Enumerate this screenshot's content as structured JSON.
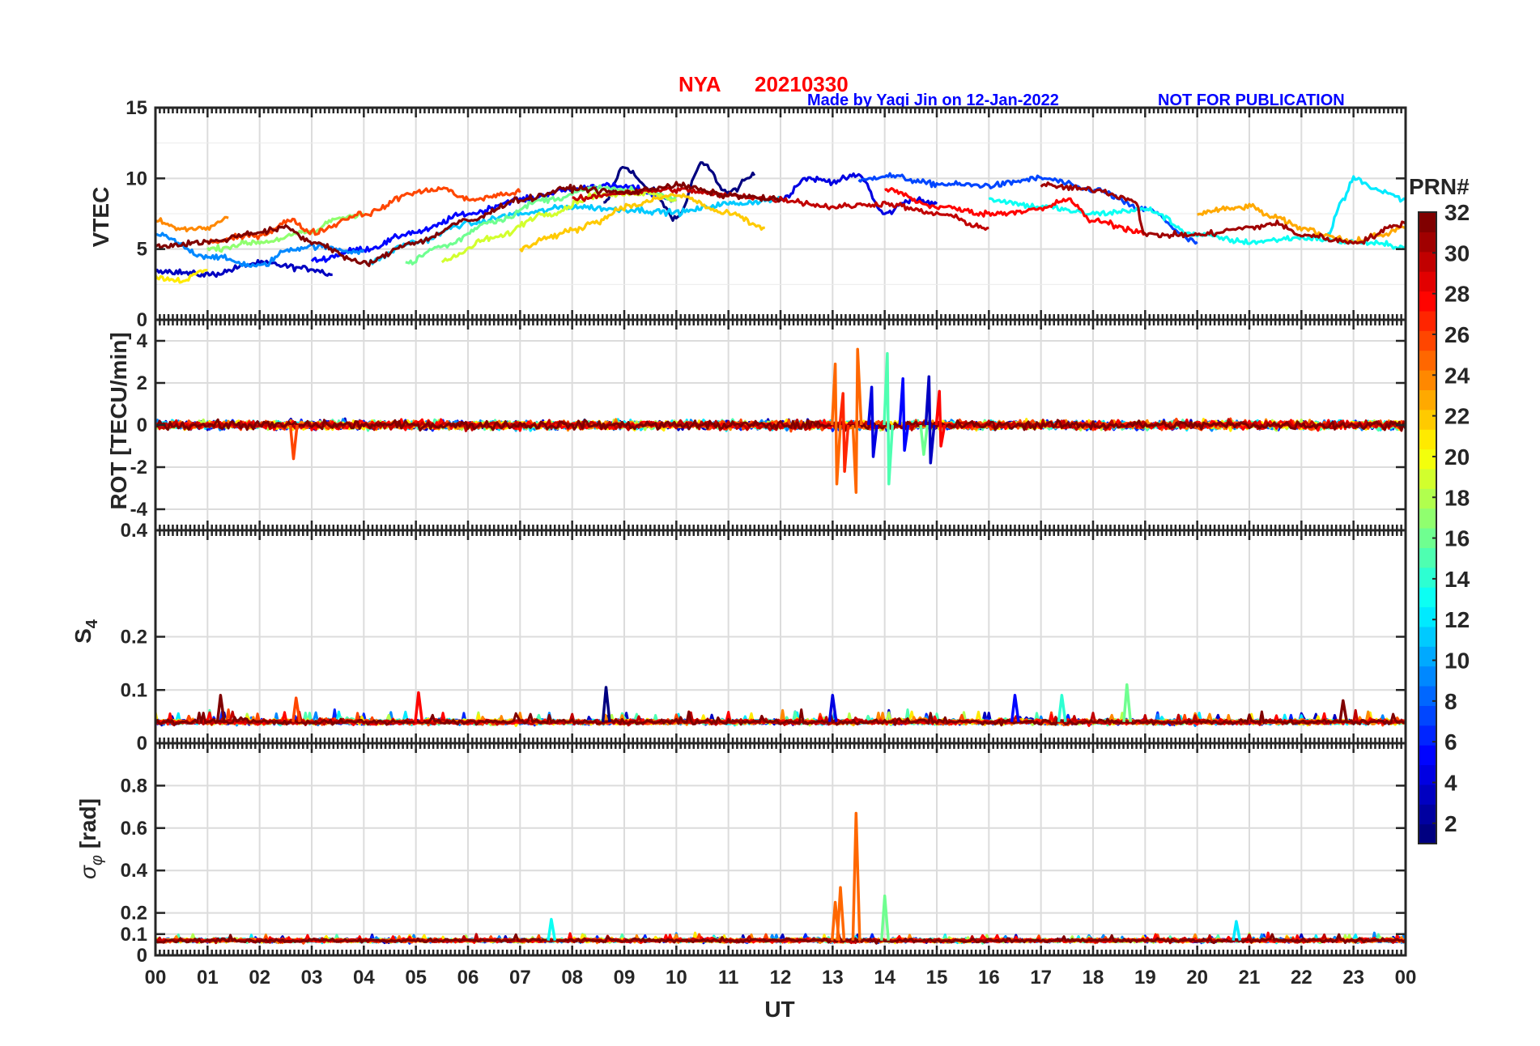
{
  "chart_data": {
    "type": "line",
    "title": {
      "station": "NYA",
      "date": "20210330"
    },
    "credit": "Made by Yaqi Jin on 12-Jan-2022",
    "notice": "NOT FOR PUBLICATION",
    "xlabel": "UT",
    "x_ticks": [
      "00",
      "01",
      "02",
      "03",
      "04",
      "05",
      "06",
      "07",
      "08",
      "09",
      "10",
      "11",
      "12",
      "13",
      "14",
      "15",
      "16",
      "17",
      "18",
      "19",
      "20",
      "21",
      "22",
      "23",
      "00"
    ],
    "xlim": [
      0,
      24
    ],
    "colorbar": {
      "title": "PRN#",
      "range": [
        1,
        32
      ],
      "ticks": [
        "2",
        "4",
        "6",
        "8",
        "10",
        "12",
        "14",
        "16",
        "18",
        "20",
        "22",
        "24",
        "26",
        "28",
        "30",
        "32"
      ],
      "colormap": "jet"
    },
    "panels": [
      {
        "id": "vtec",
        "ylabel": "VTEC",
        "ylim": [
          0,
          15
        ],
        "yticks": [
          0,
          5,
          10,
          15
        ],
        "ytick_labels": [
          "0",
          "5",
          "10",
          "15"
        ],
        "series": [
          {
            "prn": 1,
            "hours": [
              8.6,
              9.0,
              9.5,
              10.0,
              10.5,
              11.0,
              11.5
            ],
            "values": [
              8.2,
              10.8,
              9.2,
              7.2,
              11.0,
              9.0,
              10.2
            ]
          },
          {
            "prn": 3,
            "hours": [
              0.0,
              1.0,
              2.0,
              3.0,
              3.4
            ],
            "values": [
              3.5,
              3.2,
              4.0,
              3.6,
              3.2
            ]
          },
          {
            "prn": 4,
            "hours": [
              12.0,
              12.5,
              13.0,
              13.5,
              14.0,
              14.5,
              15.0
            ],
            "values": [
              8.5,
              10.0,
              9.8,
              10.2,
              7.5,
              8.5,
              8.2
            ]
          },
          {
            "prn": 5,
            "hours": [
              3.0,
              4.0,
              5.0,
              6.0,
              7.0,
              8.0,
              8.5,
              9.0,
              10.0
            ],
            "values": [
              4.2,
              5.0,
              6.2,
              7.5,
              8.5,
              9.2,
              9.5,
              9.4,
              8.5
            ]
          },
          {
            "prn": 7,
            "hours": [
              13.5,
              14.0,
              15.0,
              16.0,
              17.0,
              18.0,
              19.0,
              20.0
            ],
            "values": [
              9.8,
              10.2,
              9.6,
              9.5,
              10.0,
              9.2,
              7.8,
              5.5
            ]
          },
          {
            "prn": 9,
            "hours": [
              0.0,
              1.0,
              2.0,
              2.6,
              3.0,
              4.0
            ],
            "values": [
              6.0,
              4.5,
              3.8,
              5.0,
              5.2,
              4.8
            ]
          },
          {
            "prn": 11,
            "hours": [
              4.0,
              5.0,
              6.0,
              7.0,
              8.0,
              9.0,
              10.0,
              11.0,
              12.0
            ],
            "values": [
              4.0,
              5.5,
              6.8,
              7.5,
              8.0,
              7.8,
              7.6,
              8.2,
              8.5
            ]
          },
          {
            "prn": 12,
            "hours": [
              22.5,
              22.8,
              23.0,
              23.5,
              24.0
            ],
            "values": [
              6.0,
              8.5,
              10.0,
              9.2,
              8.5
            ]
          },
          {
            "prn": 13,
            "hours": [
              16.0,
              17.0,
              18.0,
              19.0,
              20.0,
              21.0,
              22.0,
              23.0,
              24.0
            ],
            "values": [
              8.5,
              8.0,
              7.5,
              7.8,
              6.0,
              5.5,
              5.8,
              5.5,
              5.2
            ]
          },
          {
            "prn": 16,
            "hours": [
              4.8,
              5.5,
              6.5,
              7.5,
              8.5,
              9.5,
              10.0
            ],
            "values": [
              4.0,
              5.2,
              7.0,
              8.5,
              9.3,
              9.0,
              8.6
            ]
          },
          {
            "prn": 17,
            "hours": [
              1.0,
              2.0,
              3.0,
              3.5,
              4.0
            ],
            "values": [
              5.0,
              5.5,
              6.2,
              7.2,
              7.5
            ]
          },
          {
            "prn": 19,
            "hours": [
              5.5,
              6.5,
              7.5,
              8.5,
              9.5,
              10.0
            ],
            "values": [
              4.2,
              5.8,
              7.5,
              8.8,
              9.0,
              8.5
            ]
          },
          {
            "prn": 21,
            "hours": [
              0.0,
              0.5,
              1.0
            ],
            "values": [
              3.0,
              2.8,
              3.5
            ]
          },
          {
            "prn": 22,
            "hours": [
              7.0,
              7.5,
              8.0,
              8.5,
              9.0,
              10.0,
              11.0,
              11.7
            ],
            "values": [
              5.0,
              5.8,
              6.3,
              7.0,
              8.0,
              8.8,
              7.5,
              6.5
            ]
          },
          {
            "prn": 23,
            "hours": [
              20.0,
              20.5,
              21.0,
              21.5,
              22.0,
              22.5,
              23.0,
              23.5,
              24.0
            ],
            "values": [
              7.5,
              7.8,
              8.0,
              7.2,
              6.5,
              6.0,
              5.5,
              6.0,
              6.5
            ]
          },
          {
            "prn": 24,
            "hours": [
              0.0,
              0.5,
              1.0,
              1.4
            ],
            "values": [
              7.0,
              6.4,
              6.5,
              7.2
            ]
          },
          {
            "prn": 26,
            "hours": [
              1.0,
              2.0,
              2.6,
              3.0,
              4.0,
              5.0,
              5.5,
              6.0,
              7.0
            ],
            "values": [
              5.5,
              6.0,
              7.0,
              6.2,
              7.5,
              9.0,
              9.3,
              8.5,
              9.0
            ]
          },
          {
            "prn": 28,
            "hours": [
              14.0,
              15.0,
              16.0,
              17.0,
              17.5,
              18.0,
              19.0
            ],
            "values": [
              9.2,
              8.0,
              7.5,
              7.8,
              8.5,
              7.0,
              6.2
            ]
          },
          {
            "prn": 30,
            "hours": [
              8.0,
              9.0,
              10.0,
              11.0,
              12.0,
              13.0,
              14.0,
              15.0,
              16.0
            ],
            "values": [
              8.5,
              9.0,
              9.2,
              8.8,
              8.5,
              8.0,
              8.2,
              7.5,
              6.5
            ]
          },
          {
            "prn": 31,
            "hours": [
              17.0,
              18.0,
              18.8,
              19.0,
              20.0,
              21.0,
              21.5,
              22.0,
              23.0,
              24.0
            ],
            "values": [
              9.5,
              9.2,
              8.5,
              6.0,
              6.0,
              6.5,
              6.8,
              6.0,
              5.5,
              6.8
            ]
          },
          {
            "prn": 32,
            "hours": [
              0.0,
              1.0,
              2.0,
              2.5,
              3.0,
              4.0,
              5.0,
              6.0,
              7.0,
              8.0,
              9.0,
              10.0,
              11.0,
              12.0
            ],
            "values": [
              5.2,
              5.5,
              6.2,
              6.5,
              5.5,
              4.0,
              5.5,
              7.0,
              8.5,
              9.3,
              9.0,
              9.5,
              8.8,
              8.5
            ]
          }
        ]
      },
      {
        "id": "rot",
        "ylabel": "ROT [TECU/min]",
        "ylim": [
          -5,
          5
        ],
        "yticks": [
          -4,
          -2,
          0,
          2,
          4
        ],
        "ytick_labels": [
          "-4",
          "-2",
          "0",
          "2",
          "4"
        ],
        "baseline_noise": 0.35,
        "events": [
          {
            "prn": 26,
            "hour": 2.65,
            "values": [
              -1.6
            ]
          },
          {
            "prn": 25,
            "hour": 13.05,
            "values": [
              2.9,
              -2.8
            ]
          },
          {
            "prn": 27,
            "hour": 13.2,
            "values": [
              1.5,
              -2.2
            ]
          },
          {
            "prn": 25,
            "hour": 13.45,
            "values": [
              -3.2,
              3.6
            ]
          },
          {
            "prn": 4,
            "hour": 13.75,
            "values": [
              1.8,
              -1.5
            ]
          },
          {
            "prn": 15,
            "hour": 14.05,
            "values": [
              3.4,
              -2.8
            ]
          },
          {
            "prn": 5,
            "hour": 14.35,
            "values": [
              2.2,
              -1.2
            ]
          },
          {
            "prn": 16,
            "hour": 14.75,
            "values": [
              -1.4
            ]
          },
          {
            "prn": 3,
            "hour": 14.85,
            "values": [
              2.3,
              -1.8
            ]
          },
          {
            "prn": 28,
            "hour": 15.05,
            "values": [
              1.6,
              -1.0
            ]
          }
        ]
      },
      {
        "id": "s4",
        "ylabel": "S4",
        "ylim": [
          0,
          0.4
        ],
        "yticks": [
          0,
          0.1,
          0.2,
          0.4
        ],
        "ytick_labels": [
          "0",
          "0.1",
          "0.2",
          "0.4"
        ],
        "baseline_level": 0.04,
        "events": [
          {
            "prn": 32,
            "hour": 1.25,
            "values": [
              0.09
            ]
          },
          {
            "prn": 26,
            "hour": 2.7,
            "values": [
              0.085
            ]
          },
          {
            "prn": 28,
            "hour": 5.05,
            "values": [
              0.095
            ]
          },
          {
            "prn": 1,
            "hour": 8.65,
            "values": [
              0.105
            ]
          },
          {
            "prn": 4,
            "hour": 13.0,
            "values": [
              0.09
            ]
          },
          {
            "prn": 5,
            "hour": 16.5,
            "values": [
              0.09
            ]
          },
          {
            "prn": 14,
            "hour": 17.4,
            "values": [
              0.09
            ]
          },
          {
            "prn": 16,
            "hour": 18.65,
            "values": [
              0.11
            ]
          },
          {
            "prn": 32,
            "hour": 22.8,
            "values": [
              0.08
            ]
          }
        ]
      },
      {
        "id": "sigma_phi",
        "ylabel": "σφ [rad]",
        "ylabel_symbol": "σ",
        "ylabel_subscript": "φ",
        "ylabel_unit": "[rad]",
        "ylim": [
          0,
          1
        ],
        "yticks": [
          0,
          0.1,
          0.2,
          0.4,
          0.6,
          0.8
        ],
        "ytick_labels": [
          "0",
          "0.1",
          "0.2",
          "0.4",
          "0.6",
          "0.8"
        ],
        "baseline_level": 0.07,
        "events": [
          {
            "prn": 13,
            "hour": 7.6,
            "values": [
              0.17
            ]
          },
          {
            "prn": 25,
            "hour": 13.05,
            "values": [
              0.25
            ]
          },
          {
            "prn": 25,
            "hour": 13.15,
            "values": [
              0.32
            ]
          },
          {
            "prn": 25,
            "hour": 13.45,
            "values": [
              0.67
            ]
          },
          {
            "prn": 16,
            "hour": 14.0,
            "values": [
              0.28
            ]
          },
          {
            "prn": 12,
            "hour": 20.75,
            "values": [
              0.16
            ]
          }
        ]
      }
    ]
  }
}
